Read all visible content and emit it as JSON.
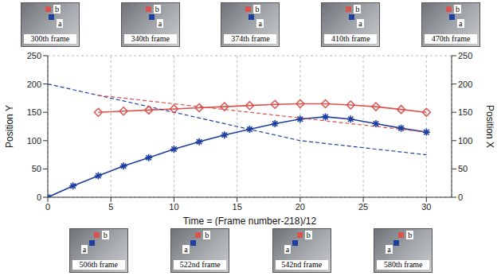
{
  "chart_data": {
    "type": "line",
    "x_label": "Time = (Frame number-218)/12",
    "y_label": "Position Y",
    "y2_label": "Position X",
    "xlim": [
      0,
      32
    ],
    "xticks": [
      0,
      5,
      10,
      15,
      20,
      25,
      30
    ],
    "ylim": [
      0,
      250
    ],
    "yticks": [
      0,
      50,
      100,
      150,
      200,
      250
    ],
    "y2lim": [
      0,
      250
    ],
    "y2ticks": [
      0,
      50,
      100,
      150,
      200,
      250
    ],
    "grid": true,
    "series": [
      {
        "name": "a",
        "color": "#1f3f9f",
        "marker": "star",
        "x": [
          0,
          2,
          4,
          6,
          8,
          10,
          12,
          14,
          16,
          18,
          20,
          22,
          24,
          26,
          28,
          30
        ],
        "values": [
          0,
          20,
          38,
          55,
          70,
          85,
          98,
          110,
          120,
          130,
          138,
          142,
          138,
          130,
          122,
          115
        ],
        "position_x": [
          200,
          190,
          180,
          170,
          160,
          150,
          140,
          130,
          120,
          110,
          100,
          95,
          90,
          85,
          80,
          75
        ]
      },
      {
        "name": "b",
        "color": "#d9534f",
        "marker": "diamond",
        "x": [
          4,
          6,
          8,
          10,
          12,
          14,
          16,
          18,
          20,
          22,
          24,
          26,
          28,
          30
        ],
        "values": [
          150,
          152,
          154,
          156,
          158,
          160,
          162,
          164,
          165,
          165,
          163,
          160,
          155,
          150
        ],
        "position_x": [
          180,
          175,
          170,
          165,
          160,
          155,
          150,
          145,
          140,
          135,
          130,
          125,
          120,
          115
        ]
      }
    ],
    "frames": {
      "top": [
        "300th frame",
        "340th frame",
        "374th frame",
        "410th frame",
        "470th frame"
      ],
      "bottom": [
        "506th frame",
        "522nd frame",
        "542nd frame",
        "580th frame"
      ]
    }
  }
}
